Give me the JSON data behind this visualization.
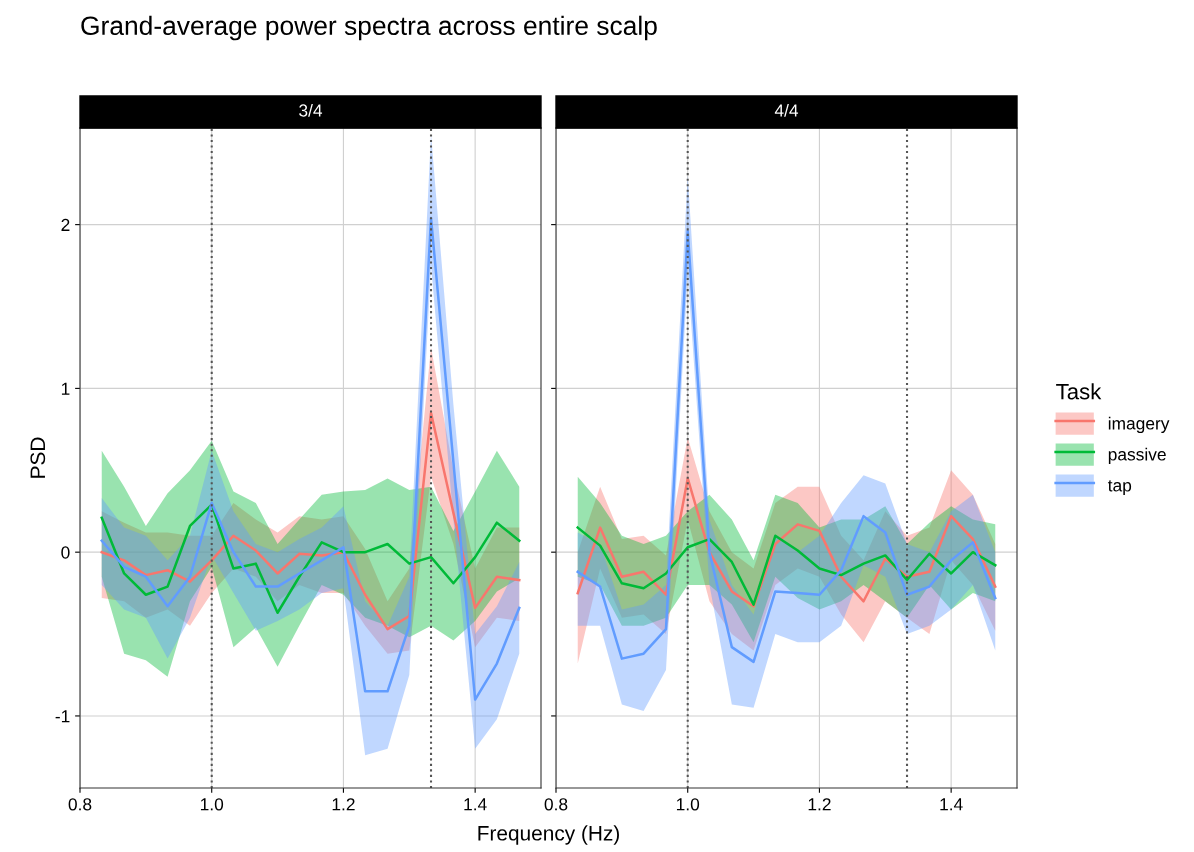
{
  "chart_data": [
    {
      "type": "line",
      "title": "Grand-average power spectra across entire scalp",
      "subtitle": "3/4",
      "xlabel": "Frequency (Hz)",
      "ylabel": "PSD",
      "legend_title": "Task",
      "legend": "right",
      "grid": true,
      "xlim": [
        0.8,
        1.5
      ],
      "xticks": [
        {
          "value": 0.8,
          "label": "0.8"
        },
        {
          "value": 1.0,
          "label": "1.0"
        },
        {
          "value": 1.2,
          "label": "1.2"
        },
        {
          "value": 1.4,
          "label": "1.4"
        }
      ],
      "ylim": [
        -1.44,
        2.59
      ],
      "yticks": [
        -1,
        0,
        1,
        2
      ],
      "x": [
        0.833,
        0.867,
        0.9,
        0.933,
        0.967,
        1.0,
        1.033,
        1.067,
        1.1,
        1.133,
        1.167,
        1.2,
        1.233,
        1.267,
        1.3,
        1.333,
        1.367,
        1.4,
        1.433,
        1.467
      ],
      "ref_lines": [
        {
          "axis": "x",
          "value": 1.0,
          "line_style": "dotted",
          "color": "#555555"
        },
        {
          "axis": "x",
          "value": 1.333,
          "line_style": "dotted",
          "color": "#555555"
        }
      ],
      "series": [
        {
          "name": "imagery",
          "color": "#f8766d",
          "values": [
            0.0,
            -0.05,
            -0.14,
            -0.11,
            -0.18,
            -0.05,
            0.1,
            0.01,
            -0.13,
            -0.01,
            -0.02,
            0.0,
            -0.26,
            -0.47,
            -0.39,
            0.85,
            0.24,
            -0.34,
            -0.15,
            -0.17
          ],
          "upper": [
            0.25,
            0.18,
            0.12,
            0.12,
            0.1,
            0.1,
            0.3,
            0.2,
            0.12,
            0.22,
            0.2,
            0.22,
            0.02,
            -0.3,
            -0.1,
            1.25,
            0.5,
            -0.1,
            0.15,
            0.15
          ],
          "lower": [
            -0.28,
            -0.3,
            -0.4,
            -0.35,
            -0.45,
            -0.25,
            -0.1,
            -0.15,
            -0.3,
            -0.2,
            -0.25,
            -0.25,
            -0.45,
            -0.62,
            -0.6,
            0.46,
            0.05,
            -0.58,
            -0.4,
            -0.42
          ]
        },
        {
          "name": "passive",
          "color": "#00ba38",
          "values": [
            0.21,
            -0.13,
            -0.26,
            -0.21,
            0.16,
            0.29,
            -0.1,
            -0.07,
            -0.37,
            -0.15,
            0.06,
            0.0,
            0.0,
            0.05,
            -0.07,
            -0.03,
            -0.19,
            -0.03,
            0.18,
            0.07
          ],
          "upper": [
            0.62,
            0.4,
            0.16,
            0.36,
            0.5,
            0.68,
            0.37,
            0.3,
            0.05,
            0.2,
            0.35,
            0.37,
            0.38,
            0.45,
            0.38,
            0.4,
            0.13,
            0.37,
            0.62,
            0.4
          ],
          "lower": [
            -0.15,
            -0.62,
            -0.66,
            -0.76,
            -0.3,
            -0.09,
            -0.58,
            -0.46,
            -0.7,
            -0.45,
            -0.2,
            -0.26,
            -0.4,
            -0.45,
            -0.52,
            -0.45,
            -0.54,
            -0.42,
            -0.24,
            -0.16
          ]
        },
        {
          "name": "tap",
          "color": "#619cff",
          "values": [
            0.07,
            -0.09,
            -0.15,
            -0.33,
            -0.15,
            0.3,
            0.0,
            -0.21,
            -0.21,
            -0.13,
            -0.05,
            0.03,
            -0.85,
            -0.85,
            -0.45,
            2.04,
            0.55,
            -0.9,
            -0.68,
            -0.34
          ],
          "upper": [
            0.33,
            0.15,
            0.1,
            -0.05,
            0.1,
            0.62,
            0.25,
            0.05,
            0.0,
            0.08,
            0.15,
            0.28,
            -0.3,
            -0.45,
            -0.15,
            2.55,
            0.9,
            -0.5,
            -0.33,
            -0.06
          ],
          "lower": [
            -0.2,
            -0.35,
            -0.4,
            -0.65,
            -0.4,
            -0.02,
            -0.25,
            -0.48,
            -0.42,
            -0.35,
            -0.25,
            -0.22,
            -1.24,
            -1.2,
            -0.75,
            1.75,
            0.2,
            -1.2,
            -1.02,
            -0.62
          ]
        }
      ]
    },
    {
      "type": "line",
      "subtitle": "4/4",
      "grid": true,
      "tick_labels": "x",
      "xlim": [
        0.8,
        1.5
      ],
      "xticks": [
        {
          "value": 0.8,
          "label": "0.8"
        },
        {
          "value": 1.0,
          "label": "1.0"
        },
        {
          "value": 1.2,
          "label": "1.2"
        },
        {
          "value": 1.4,
          "label": "1.4"
        }
      ],
      "ylim": [
        -1.44,
        2.59
      ],
      "yticks": [
        -1,
        0,
        1,
        2
      ],
      "x": [
        0.833,
        0.867,
        0.9,
        0.933,
        0.967,
        1.0,
        1.033,
        1.067,
        1.1,
        1.133,
        1.167,
        1.2,
        1.233,
        1.267,
        1.3,
        1.333,
        1.367,
        1.4,
        1.433,
        1.467
      ],
      "ref_lines": [
        {
          "axis": "x",
          "value": 1.0,
          "line_style": "dotted",
          "color": "#555555"
        },
        {
          "axis": "x",
          "value": 1.333,
          "line_style": "dotted",
          "color": "#555555"
        }
      ],
      "series": [
        {
          "color": "#f8766d",
          "values": [
            -0.25,
            0.15,
            -0.15,
            -0.12,
            -0.26,
            0.45,
            0.0,
            -0.24,
            -0.33,
            0.05,
            0.17,
            0.13,
            -0.15,
            -0.3,
            -0.04,
            -0.15,
            -0.12,
            0.22,
            0.08,
            -0.21
          ],
          "upper": [
            0.0,
            0.4,
            0.08,
            0.1,
            -0.02,
            0.7,
            0.25,
            0.0,
            -0.1,
            0.3,
            0.4,
            0.4,
            0.1,
            -0.05,
            0.25,
            0.1,
            0.15,
            0.5,
            0.35,
            0.05
          ],
          "lower": [
            -0.68,
            -0.1,
            -0.4,
            -0.38,
            -0.5,
            0.2,
            -0.3,
            -0.5,
            -0.6,
            -0.2,
            -0.1,
            -0.15,
            -0.38,
            -0.55,
            -0.3,
            -0.4,
            -0.5,
            -0.05,
            -0.2,
            -0.48
          ]
        },
        {
          "color": "#00ba38",
          "values": [
            0.15,
            0.04,
            -0.19,
            -0.22,
            -0.13,
            0.03,
            0.08,
            -0.06,
            -0.32,
            0.1,
            0.01,
            -0.1,
            -0.14,
            -0.07,
            -0.02,
            -0.17,
            -0.01,
            -0.13,
            0.0,
            -0.08
          ],
          "upper": [
            0.46,
            0.3,
            0.1,
            0.05,
            0.1,
            0.25,
            0.35,
            0.2,
            -0.05,
            0.35,
            0.3,
            0.15,
            0.2,
            0.2,
            0.28,
            0.05,
            0.18,
            0.28,
            0.2,
            0.17
          ],
          "lower": [
            -0.15,
            -0.2,
            -0.45,
            -0.45,
            -0.4,
            -0.2,
            -0.2,
            -0.32,
            -0.55,
            -0.15,
            -0.28,
            -0.35,
            -0.3,
            -0.2,
            -0.3,
            -0.4,
            -0.2,
            -0.35,
            -0.25,
            -0.3
          ]
        },
        {
          "color": "#619cff",
          "values": [
            -0.12,
            -0.21,
            -0.65,
            -0.62,
            -0.47,
            1.96,
            0.0,
            -0.58,
            -0.67,
            -0.24,
            -0.25,
            -0.26,
            -0.11,
            0.22,
            0.12,
            -0.26,
            -0.21,
            -0.05,
            0.06,
            -0.28
          ],
          "upper": [
            0.12,
            0.05,
            -0.35,
            -0.32,
            -0.2,
            2.3,
            0.2,
            -0.2,
            -0.38,
            0.1,
            0.0,
            0.1,
            0.3,
            0.47,
            0.42,
            0.05,
            0.0,
            0.25,
            0.35,
            0.0
          ],
          "lower": [
            -0.45,
            -0.45,
            -0.93,
            -0.97,
            -0.72,
            1.7,
            -0.2,
            -0.93,
            -0.95,
            -0.5,
            -0.55,
            -0.55,
            -0.45,
            -0.08,
            -0.15,
            -0.5,
            -0.45,
            -0.35,
            -0.2,
            -0.6
          ]
        }
      ]
    }
  ]
}
